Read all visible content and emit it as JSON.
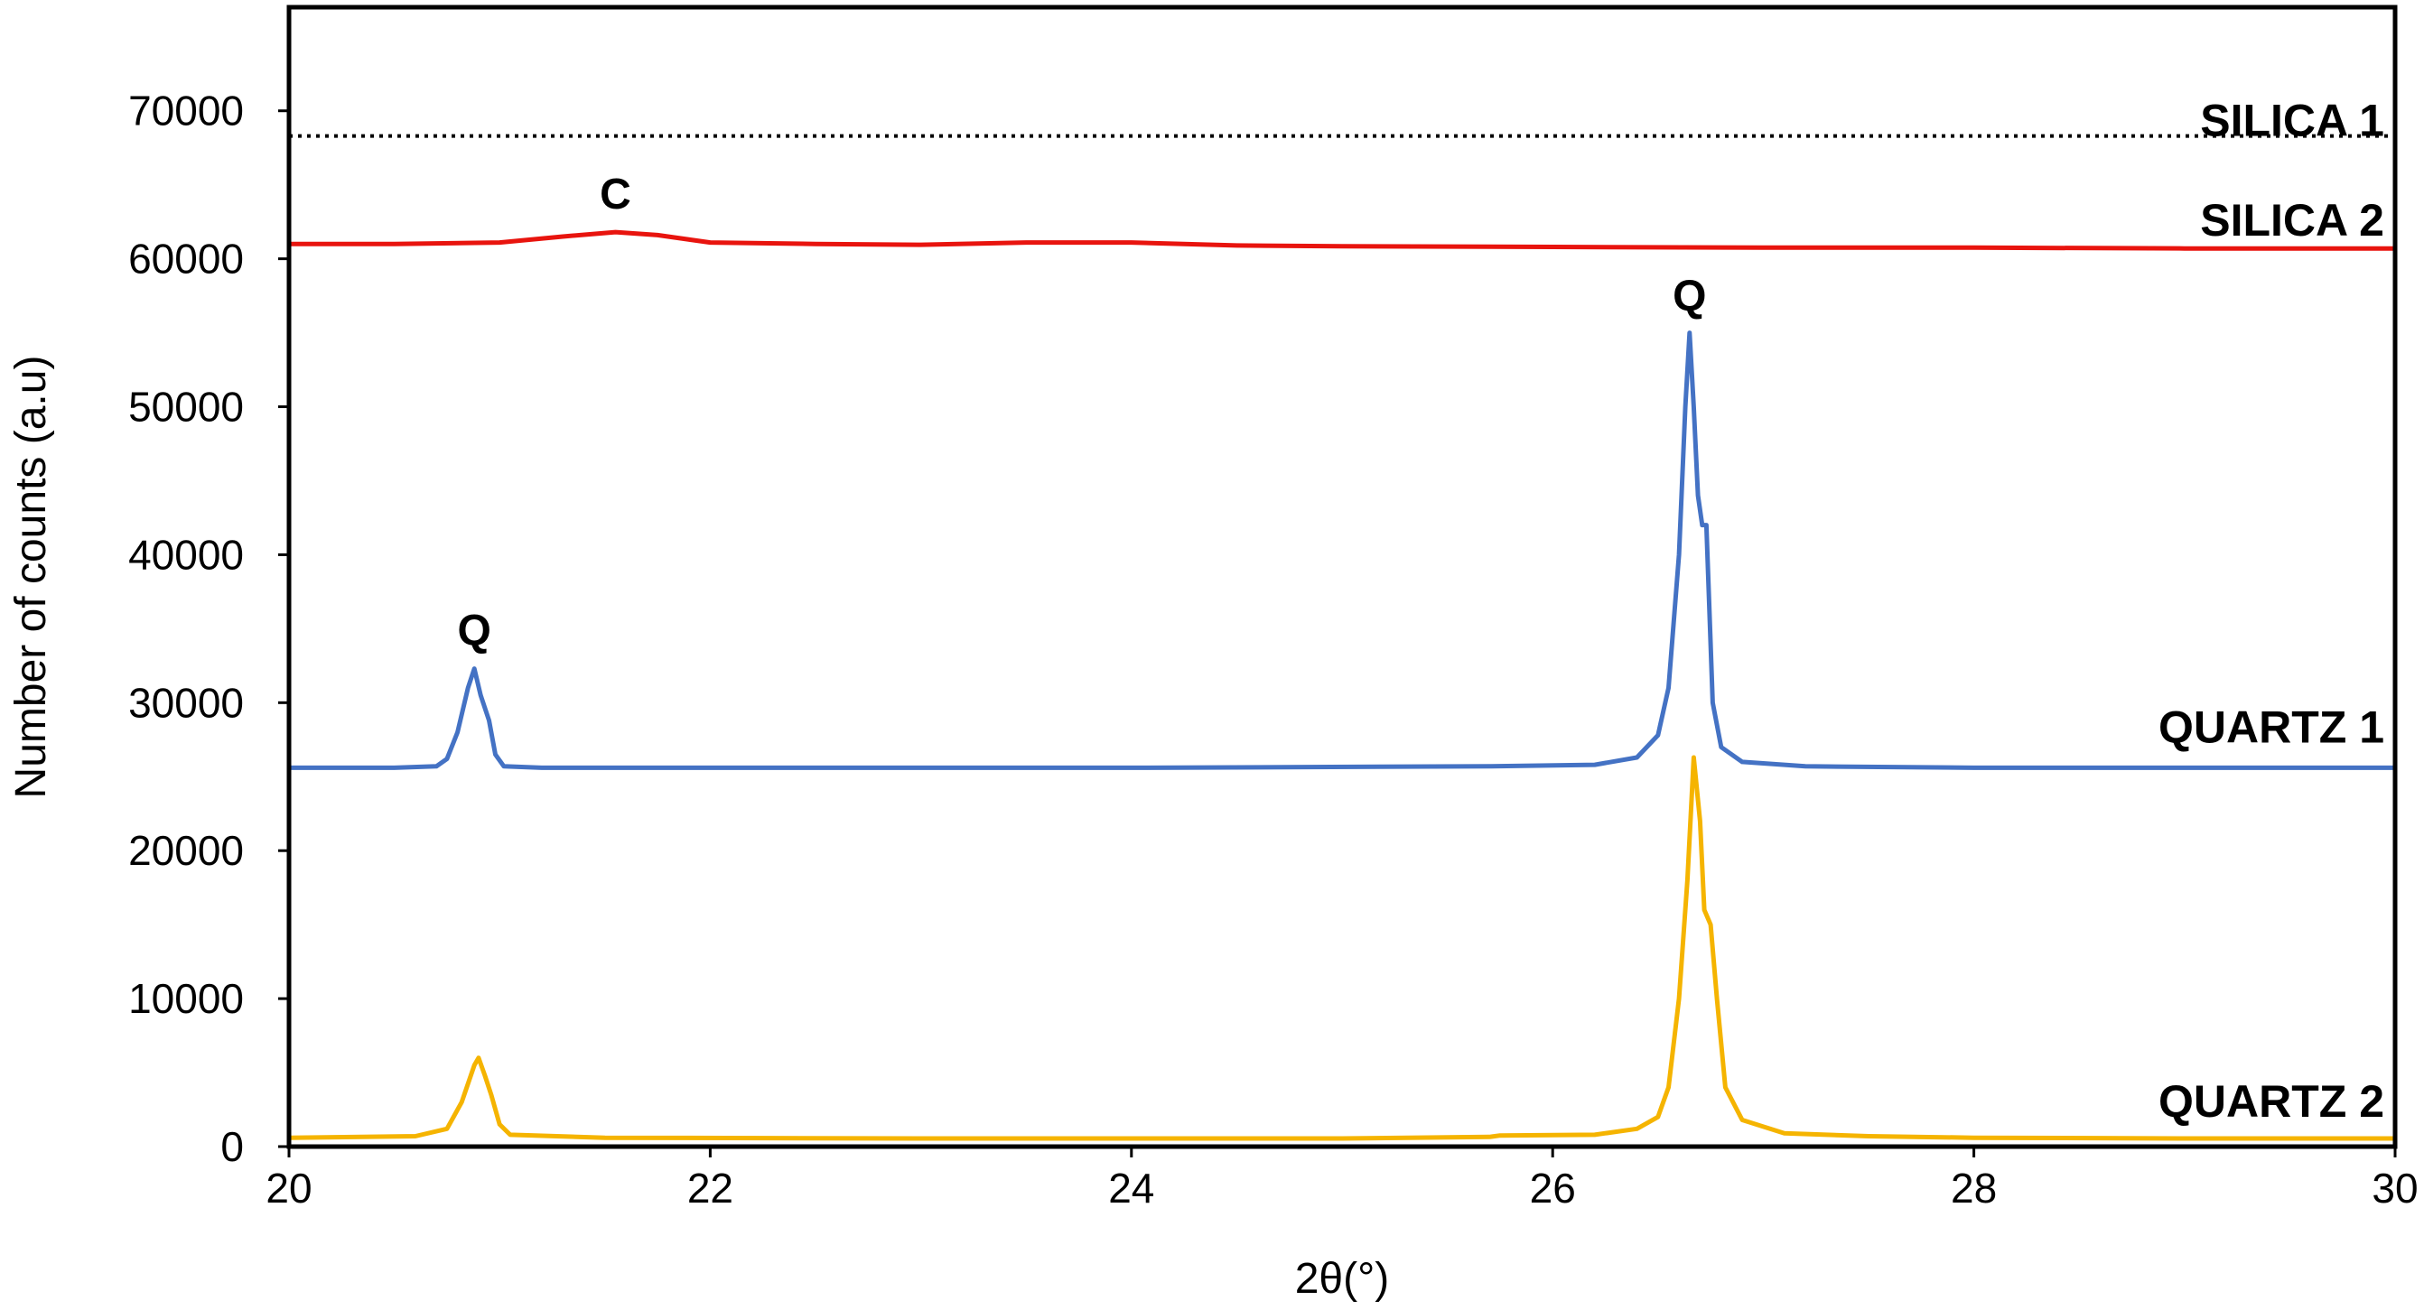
{
  "chart_data": {
    "type": "line",
    "title": "",
    "xlabel": "2θ(°)",
    "ylabel": "Number of counts (a.u)",
    "xlim": [
      20,
      30
    ],
    "ylim": [
      0,
      77000
    ],
    "xticks": [
      20,
      22,
      24,
      26,
      28,
      30
    ],
    "xtick_labels": [
      "20",
      "22",
      "24",
      "26",
      "28",
      "30"
    ],
    "yticks": [
      0,
      10000,
      20000,
      30000,
      40000,
      50000,
      60000,
      70000
    ],
    "ytick_labels": [
      "0",
      "10000",
      "20000",
      "30000",
      "40000",
      "50000",
      "60000",
      "70000"
    ],
    "grid": false,
    "series": [
      {
        "name": "SILICA 1",
        "color": "#000000",
        "style": "dotted",
        "points": [
          [
            20,
            68300
          ],
          [
            22,
            68300
          ],
          [
            24,
            68300
          ],
          [
            26,
            68300
          ],
          [
            28,
            68300
          ],
          [
            30,
            68300
          ]
        ]
      },
      {
        "name": "SILICA 2",
        "color": "#e8140e",
        "style": "solid",
        "points": [
          [
            20,
            61000
          ],
          [
            20.5,
            61000
          ],
          [
            21.0,
            61100
          ],
          [
            21.3,
            61500
          ],
          [
            21.55,
            61800
          ],
          [
            21.75,
            61600
          ],
          [
            22.0,
            61100
          ],
          [
            22.5,
            61000
          ],
          [
            23.0,
            60950
          ],
          [
            23.5,
            61100
          ],
          [
            24.0,
            61100
          ],
          [
            24.5,
            60900
          ],
          [
            25.0,
            60850
          ],
          [
            26.0,
            60800
          ],
          [
            27.0,
            60750
          ],
          [
            28.0,
            60750
          ],
          [
            29.0,
            60700
          ],
          [
            30.0,
            60700
          ]
        ]
      },
      {
        "name": "QUARTZ 1",
        "color": "#4472c4",
        "style": "solid",
        "points": [
          [
            20,
            25600
          ],
          [
            20.5,
            25600
          ],
          [
            20.7,
            25700
          ],
          [
            20.75,
            26200
          ],
          [
            20.8,
            28000
          ],
          [
            20.85,
            31000
          ],
          [
            20.88,
            32300
          ],
          [
            20.91,
            30500
          ],
          [
            20.95,
            28800
          ],
          [
            20.98,
            26500
          ],
          [
            21.02,
            25700
          ],
          [
            21.2,
            25600
          ],
          [
            22,
            25600
          ],
          [
            24,
            25600
          ],
          [
            25.7,
            25700
          ],
          [
            26.2,
            25800
          ],
          [
            26.4,
            26300
          ],
          [
            26.5,
            27800
          ],
          [
            26.55,
            31000
          ],
          [
            26.6,
            40000
          ],
          [
            26.63,
            50000
          ],
          [
            26.65,
            55000
          ],
          [
            26.67,
            50000
          ],
          [
            26.69,
            44000
          ],
          [
            26.71,
            42000
          ],
          [
            26.73,
            42000
          ],
          [
            26.76,
            30000
          ],
          [
            26.8,
            27000
          ],
          [
            26.9,
            26000
          ],
          [
            27.2,
            25700
          ],
          [
            28,
            25600
          ],
          [
            29,
            25600
          ],
          [
            30,
            25600
          ]
        ]
      },
      {
        "name": "QUARTZ 2",
        "color": "#f5b400",
        "style": "solid",
        "points": [
          [
            20,
            600
          ],
          [
            20.6,
            700
          ],
          [
            20.75,
            1200
          ],
          [
            20.82,
            3000
          ],
          [
            20.88,
            5500
          ],
          [
            20.9,
            6000
          ],
          [
            20.93,
            4800
          ],
          [
            20.96,
            3500
          ],
          [
            21.0,
            1500
          ],
          [
            21.05,
            800
          ],
          [
            21.5,
            600
          ],
          [
            23,
            550
          ],
          [
            25,
            550
          ],
          [
            25.7,
            650
          ],
          [
            25.75,
            750
          ],
          [
            26.2,
            800
          ],
          [
            26.4,
            1200
          ],
          [
            26.5,
            2000
          ],
          [
            26.55,
            4000
          ],
          [
            26.6,
            10000
          ],
          [
            26.64,
            18000
          ],
          [
            26.67,
            26300
          ],
          [
            26.7,
            22000
          ],
          [
            26.72,
            16000
          ],
          [
            26.75,
            15000
          ],
          [
            26.78,
            10000
          ],
          [
            26.82,
            4000
          ],
          [
            26.9,
            1800
          ],
          [
            27.1,
            900
          ],
          [
            27.5,
            700
          ],
          [
            28,
            600
          ],
          [
            29,
            550
          ],
          [
            30,
            550
          ]
        ]
      }
    ],
    "annotations": [
      {
        "text": "C",
        "x": 21.55,
        "y": 63400
      },
      {
        "text": "Q",
        "x": 20.88,
        "y": 33900
      },
      {
        "text": "Q",
        "x": 26.65,
        "y": 56500
      }
    ]
  }
}
